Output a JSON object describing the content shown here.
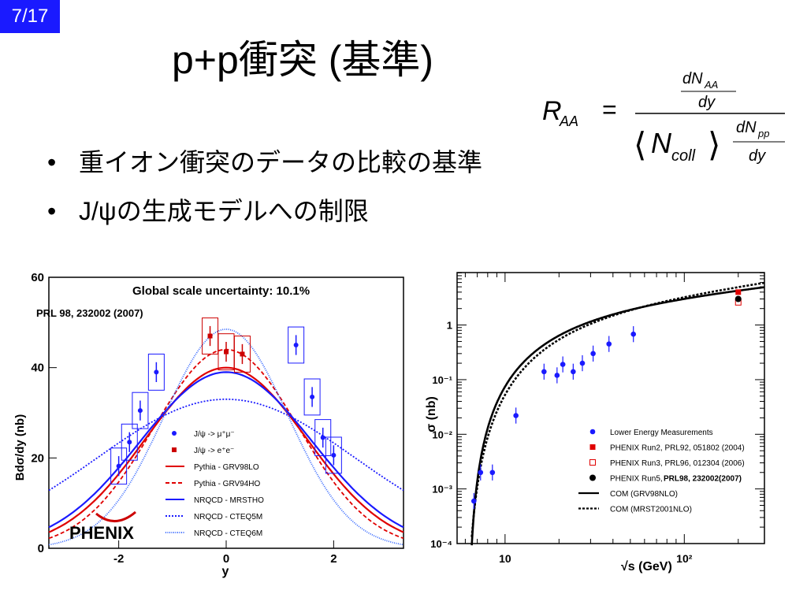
{
  "slide_number": "7/17",
  "title": "p+p衝突 (基準)",
  "formula": {
    "lhs": "R",
    "lhs_sub": "AA",
    "num_top": "dN",
    "num_top_sub": "AA",
    "num_bottom": "dy",
    "den_symbol": "N",
    "den_sub": "coll",
    "den_frac_top": "dN",
    "den_frac_top_sub": "pp",
    "den_frac_bottom": "dy"
  },
  "bullets": [
    {
      "marker": "•",
      "text": "重イオン衝突のデータの比較の基準"
    },
    {
      "marker": "•",
      "text": "J/ψの生成モデルへの制限"
    }
  ],
  "chart_data": [
    {
      "type": "line",
      "title": "Global scale uncertainty: 10.1%",
      "reference": "PRL 98, 232002 (2007)",
      "xlabel": "y",
      "ylabel": "Bdσ/dy (nb)",
      "xlim": [
        -3.3,
        3.3
      ],
      "ylim": [
        0,
        60
      ],
      "x_ticks": [
        "-2",
        "0",
        "2"
      ],
      "y_ticks": [
        "0",
        "20",
        "40",
        "60"
      ],
      "logo": "PHENIX",
      "points_mumu": {
        "label": "J/ψ -> μ⁺μ⁻",
        "color": "#1a1aff",
        "x": [
          -2.0,
          -1.8,
          -1.6,
          -1.3,
          1.3,
          1.6,
          1.8,
          2.0
        ],
        "y": [
          18.2,
          23.5,
          30.5,
          39.0,
          45.0,
          33.5,
          24.5,
          20.6
        ]
      },
      "points_ee": {
        "label": "J/ψ -> e⁺e⁻",
        "color": "#cc0000",
        "x": [
          -0.3,
          0.0,
          0.3
        ],
        "y": [
          47.0,
          43.5,
          43.0
        ]
      },
      "curves": [
        {
          "name": "Pythia - GRV98LO",
          "style": "solid",
          "color": "#e00000",
          "peak": 40,
          "width": 1.5
        },
        {
          "name": "Pythia - GRV94HO",
          "style": "dashed",
          "color": "#e00000",
          "peak": 44,
          "width": 1.35
        },
        {
          "name": "NRQCD - MRSTHO",
          "style": "solid",
          "color": "#1a1aff",
          "peak": 39,
          "width": 1.6
        },
        {
          "name": "NRQCD - CTEQ5M",
          "style": "dotted",
          "color": "#1a1aff",
          "peak": 33,
          "width": 2.4
        },
        {
          "name": "NRQCD - CTEQ6M",
          "style": "dotted-fine",
          "color": "#3366ff",
          "peak": 48.5,
          "width": 1.15
        }
      ]
    },
    {
      "type": "line",
      "xlabel": "√s (GeV)",
      "ylabel": "σ (nb)",
      "x_ticks": [
        "10",
        "10²"
      ],
      "y_ticks": [
        "10⁻⁴",
        "10⁻³",
        "10⁻²",
        "10⁻¹",
        "1"
      ],
      "series": [
        {
          "name": "Lower Energy Measurements",
          "color": "#1a1aff",
          "x": [
            6.7,
            7.3,
            8.5,
            11.5,
            16.5,
            19.5,
            21,
            24,
            27,
            31,
            38,
            52
          ],
          "y": [
            0.0006,
            0.002,
            0.002,
            0.022,
            0.14,
            0.12,
            0.19,
            0.14,
            0.2,
            0.3,
            0.45,
            0.68
          ]
        },
        {
          "name": "PHENIX Run2, PRL92, 051802 (2004)",
          "color": "#e00000",
          "x": [
            200
          ],
          "y": [
            4.0
          ]
        },
        {
          "name": "PHENIX Run3, PRL96, 012304 (2006)",
          "color": "#e00000",
          "x": [
            200
          ],
          "y": [
            2.6
          ]
        },
        {
          "name": "PHENIX Run5,",
          "name_suffix": "PRL98, 232002(2007)",
          "color": "#000000",
          "x": [
            200
          ],
          "y": [
            3.0
          ]
        },
        {
          "name": "COM (GRV98NLO)",
          "style": "solid",
          "color": "#000000"
        },
        {
          "name": "COM (MRST2001NLO)",
          "style": "dotted",
          "color": "#000000"
        }
      ]
    }
  ]
}
